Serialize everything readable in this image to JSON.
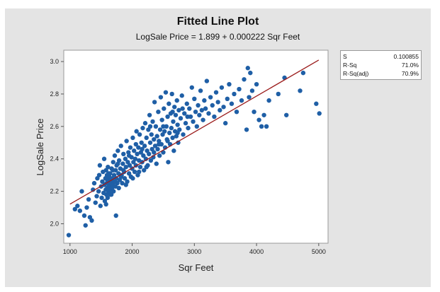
{
  "chart_data": {
    "type": "scatter",
    "title": "Fitted Line Plot",
    "subtitle": "LogSale Price = 1.899 + 0.000222 Sqr Feet",
    "xlabel": "Sqr Feet",
    "ylabel": "LogSale Price",
    "xlim": [
      900,
      5150
    ],
    "ylim": [
      1.88,
      3.07
    ],
    "x_ticks": [
      1000,
      2000,
      3000,
      4000,
      5000
    ],
    "y_ticks": [
      2.0,
      2.2,
      2.4,
      2.6,
      2.8,
      3.0
    ],
    "grid": false,
    "fit_line": {
      "intercept": 1.899,
      "slope": 0.000222,
      "x": [
        1000,
        5000
      ],
      "color": "#9b1c1c"
    },
    "point_color": "#1f5fa6",
    "stats": [
      {
        "label": "S",
        "value": "0.100855"
      },
      {
        "label": "R-Sq",
        "value": "71.0%"
      },
      {
        "label": "R-Sq(adj)",
        "value": "70.9%"
      }
    ],
    "points": [
      [
        980,
        1.93
      ],
      [
        1080,
        2.09
      ],
      [
        1120,
        2.11
      ],
      [
        1160,
        2.08
      ],
      [
        1190,
        2.2
      ],
      [
        1230,
        2.05
      ],
      [
        1250,
        1.99
      ],
      [
        1270,
        2.1
      ],
      [
        1300,
        2.15
      ],
      [
        1320,
        2.04
      ],
      [
        1350,
        2.02
      ],
      [
        1370,
        2.21
      ],
      [
        1390,
        2.25
      ],
      [
        1410,
        2.13
      ],
      [
        1430,
        2.17
      ],
      [
        1440,
        2.28
      ],
      [
        1460,
        2.2
      ],
      [
        1470,
        2.3
      ],
      [
        1480,
        2.36
      ],
      [
        1490,
        2.11
      ],
      [
        1500,
        2.23
      ],
      [
        1510,
        2.16
      ],
      [
        1520,
        2.26
      ],
      [
        1530,
        2.32
      ],
      [
        1540,
        2.19
      ],
      [
        1550,
        2.4
      ],
      [
        1555,
        2.24
      ],
      [
        1560,
        2.14
      ],
      [
        1570,
        2.28
      ],
      [
        1575,
        2.21
      ],
      [
        1580,
        2.33
      ],
      [
        1585,
        2.18
      ],
      [
        1590,
        2.25
      ],
      [
        1595,
        2.3
      ],
      [
        1600,
        2.22
      ],
      [
        1600,
        2.27
      ],
      [
        1605,
        2.16
      ],
      [
        1610,
        2.35
      ],
      [
        1615,
        2.2
      ],
      [
        1620,
        2.26
      ],
      [
        1625,
        2.24
      ],
      [
        1630,
        2.29
      ],
      [
        1635,
        2.19
      ],
      [
        1640,
        2.23
      ],
      [
        1645,
        2.31
      ],
      [
        1650,
        2.21
      ],
      [
        1655,
        2.27
      ],
      [
        1660,
        2.25
      ],
      [
        1665,
        2.18
      ],
      [
        1670,
        2.34
      ],
      [
        1675,
        2.22
      ],
      [
        1680,
        2.28
      ],
      [
        1690,
        2.24
      ],
      [
        1695,
        2.38
      ],
      [
        1700,
        2.2
      ],
      [
        1710,
        2.3
      ],
      [
        1715,
        2.26
      ],
      [
        1720,
        2.42
      ],
      [
        1730,
        2.23
      ],
      [
        1735,
        2.33
      ],
      [
        1740,
        2.05
      ],
      [
        1745,
        2.28
      ],
      [
        1750,
        2.36
      ],
      [
        1760,
        2.25
      ],
      [
        1770,
        2.45
      ],
      [
        1780,
        2.31
      ],
      [
        1785,
        2.22
      ],
      [
        1790,
        2.39
      ],
      [
        1800,
        2.27
      ],
      [
        1810,
        2.34
      ],
      [
        1820,
        2.48
      ],
      [
        1830,
        2.3
      ],
      [
        1840,
        2.25
      ],
      [
        1850,
        2.37
      ],
      [
        1860,
        2.43
      ],
      [
        1870,
        2.32
      ],
      [
        1880,
        2.28
      ],
      [
        1890,
        2.4
      ],
      [
        1900,
        2.35
      ],
      [
        1910,
        2.51
      ],
      [
        1920,
        2.26
      ],
      [
        1930,
        2.38
      ],
      [
        1940,
        2.44
      ],
      [
        1950,
        2.31
      ],
      [
        1960,
        2.36
      ],
      [
        1970,
        2.47
      ],
      [
        1980,
        2.29
      ],
      [
        1990,
        2.41
      ],
      [
        2000,
        2.34
      ],
      [
        2010,
        2.53
      ],
      [
        2020,
        2.38
      ],
      [
        2030,
        2.45
      ],
      [
        2040,
        2.32
      ],
      [
        2050,
        2.4
      ],
      [
        2060,
        2.36
      ],
      [
        2070,
        2.57
      ],
      [
        2080,
        2.43
      ],
      [
        2090,
        2.3
      ],
      [
        2100,
        2.47
      ],
      [
        2110,
        2.39
      ],
      [
        2120,
        2.55
      ],
      [
        2130,
        2.35
      ],
      [
        2140,
        2.44
      ],
      [
        2150,
        2.5
      ],
      [
        2160,
        2.38
      ],
      [
        2170,
        2.59
      ],
      [
        2180,
        2.42
      ],
      [
        2190,
        2.33
      ],
      [
        2200,
        2.48
      ],
      [
        2210,
        2.62
      ],
      [
        2220,
        2.4
      ],
      [
        2230,
        2.53
      ],
      [
        2240,
        2.45
      ],
      [
        2250,
        2.36
      ],
      [
        2260,
        2.58
      ],
      [
        2270,
        2.43
      ],
      [
        2280,
        2.67
      ],
      [
        2290,
        2.5
      ],
      [
        2300,
        2.39
      ],
      [
        2310,
        2.55
      ],
      [
        2320,
        2.46
      ],
      [
        2330,
        2.63
      ],
      [
        2340,
        2.41
      ],
      [
        2350,
        2.52
      ],
      [
        2360,
        2.75
      ],
      [
        2370,
        2.48
      ],
      [
        2380,
        2.6
      ],
      [
        2390,
        2.37
      ],
      [
        2400,
        2.54
      ],
      [
        2410,
        2.46
      ],
      [
        2420,
        2.69
      ],
      [
        2430,
        2.51
      ],
      [
        2440,
        2.42
      ],
      [
        2450,
        2.58
      ],
      [
        2460,
        2.78
      ],
      [
        2470,
        2.49
      ],
      [
        2480,
        2.64
      ],
      [
        2490,
        2.55
      ],
      [
        2500,
        2.44
      ],
      [
        2510,
        2.71
      ],
      [
        2520,
        2.57
      ],
      [
        2530,
        2.47
      ],
      [
        2540,
        2.81
      ],
      [
        2550,
        2.6
      ],
      [
        2560,
        2.52
      ],
      [
        2570,
        2.66
      ],
      [
        2580,
        2.38
      ],
      [
        2590,
        2.74
      ],
      [
        2600,
        2.56
      ],
      [
        2610,
        2.49
      ],
      [
        2620,
        2.68
      ],
      [
        2630,
        2.59
      ],
      [
        2640,
        2.8
      ],
      [
        2650,
        2.53
      ],
      [
        2660,
        2.63
      ],
      [
        2670,
        2.45
      ],
      [
        2680,
        2.72
      ],
      [
        2690,
        2.57
      ],
      [
        2700,
        2.67
      ],
      [
        2710,
        2.54
      ],
      [
        2720,
        2.76
      ],
      [
        2730,
        2.61
      ],
      [
        2740,
        2.5
      ],
      [
        2750,
        2.7
      ],
      [
        2760,
        2.58
      ],
      [
        2780,
        2.65
      ],
      [
        2800,
        2.79
      ],
      [
        2820,
        2.55
      ],
      [
        2840,
        2.68
      ],
      [
        2860,
        2.62
      ],
      [
        2880,
        2.74
      ],
      [
        2900,
        2.59
      ],
      [
        2920,
        2.71
      ],
      [
        2940,
        2.66
      ],
      [
        2960,
        2.84
      ],
      [
        2980,
        2.63
      ],
      [
        3000,
        2.77
      ],
      [
        3020,
        2.69
      ],
      [
        3040,
        2.6
      ],
      [
        3060,
        2.73
      ],
      [
        3080,
        2.67
      ],
      [
        3100,
        2.82
      ],
      [
        3120,
        2.7
      ],
      [
        3140,
        2.64
      ],
      [
        3160,
        2.76
      ],
      [
        3180,
        2.71
      ],
      [
        3200,
        2.88
      ],
      [
        3230,
        2.68
      ],
      [
        3260,
        2.78
      ],
      [
        3290,
        2.73
      ],
      [
        3320,
        2.66
      ],
      [
        3350,
        2.81
      ],
      [
        3380,
        2.75
      ],
      [
        3410,
        2.7
      ],
      [
        3440,
        2.84
      ],
      [
        3470,
        2.72
      ],
      [
        3500,
        2.62
      ],
      [
        3530,
        2.77
      ],
      [
        3560,
        2.86
      ],
      [
        3600,
        2.74
      ],
      [
        3640,
        2.8
      ],
      [
        3680,
        2.69
      ],
      [
        3720,
        2.83
      ],
      [
        3760,
        2.76
      ],
      [
        3800,
        2.89
      ],
      [
        3840,
        2.58
      ],
      [
        3860,
        2.96
      ],
      [
        3880,
        2.78
      ],
      [
        3900,
        2.93
      ],
      [
        3930,
        2.82
      ],
      [
        3960,
        2.69
      ],
      [
        4000,
        2.86
      ],
      [
        4040,
        2.64
      ],
      [
        4080,
        2.6
      ],
      [
        4120,
        2.67
      ],
      [
        4160,
        2.6
      ],
      [
        4200,
        2.76
      ],
      [
        4350,
        2.8
      ],
      [
        4450,
        2.9
      ],
      [
        4480,
        2.67
      ],
      [
        4700,
        2.82
      ],
      [
        4750,
        2.93
      ],
      [
        4960,
        2.74
      ],
      [
        5010,
        2.68
      ],
      [
        1580,
        2.12
      ],
      [
        1620,
        2.31
      ],
      [
        1650,
        2.18
      ],
      [
        1690,
        2.33
      ],
      [
        1730,
        2.26
      ],
      [
        1770,
        2.37
      ],
      [
        1820,
        2.29
      ],
      [
        1860,
        2.33
      ],
      [
        1900,
        2.24
      ],
      [
        1950,
        2.42
      ],
      [
        2010,
        2.28
      ],
      [
        2060,
        2.49
      ],
      [
        2110,
        2.32
      ],
      [
        2160,
        2.46
      ],
      [
        2230,
        2.35
      ],
      [
        2290,
        2.6
      ],
      [
        2350,
        2.44
      ],
      [
        2430,
        2.49
      ],
      [
        2500,
        2.6
      ],
      [
        2570,
        2.51
      ],
      [
        2650,
        2.69
      ],
      [
        2730,
        2.56
      ],
      [
        2810,
        2.71
      ],
      [
        2890,
        2.66
      ]
    ]
  }
}
